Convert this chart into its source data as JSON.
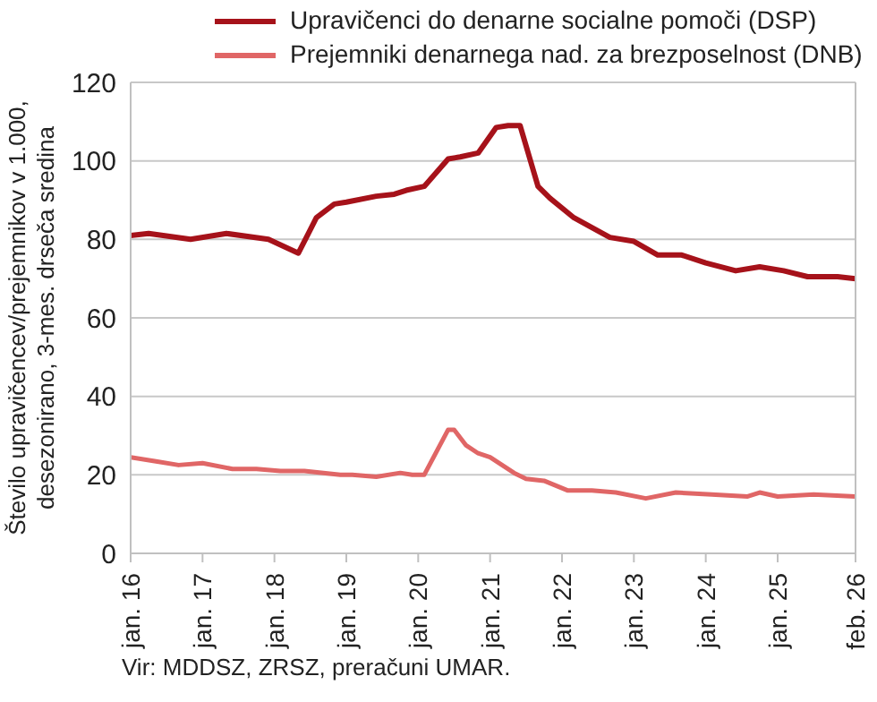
{
  "chart_data": {
    "type": "line",
    "ylabel": "Število upravičencev/prejemnikov v 1.000,\ndesezonirano, 3-mes. drseča sredina",
    "annotations": [
      "Vir: MDDSZ, ZRSZ, preračuni UMAR."
    ],
    "series": [
      {
        "name": "Upravičenci do denarne socialne pomoči (DSP)",
        "color": "#a6121a",
        "x": [
          "2016-01",
          "2016-04",
          "2016-11",
          "2017-05",
          "2017-12",
          "2018-05",
          "2018-08",
          "2018-11",
          "2019-01",
          "2019-06",
          "2019-09",
          "2019-11",
          "2020-02",
          "2020-06",
          "2020-08",
          "2020-11",
          "2021-02",
          "2021-04",
          "2021-06",
          "2021-09",
          "2021-11",
          "2022-03",
          "2022-09",
          "2023-01",
          "2023-05",
          "2023-09",
          "2024-01",
          "2024-06",
          "2024-10",
          "2025-02",
          "2025-06",
          "2025-11",
          "2026-02"
        ],
        "values": [
          81,
          81.5,
          80,
          81.5,
          80,
          76.5,
          85.5,
          89,
          89.5,
          91,
          91.5,
          92.5,
          93.5,
          100.5,
          101,
          102,
          108.5,
          109,
          109,
          93.5,
          90.5,
          85.5,
          80.5,
          79.5,
          76,
          76,
          74,
          72,
          73,
          72,
          70.5,
          70.5,
          70
        ]
      },
      {
        "name": "Prejemniki denarnega nad. za brezposelnost (DNB)",
        "color": "#e06666",
        "x": [
          "2016-01",
          "2016-05",
          "2016-09",
          "2017-01",
          "2017-06",
          "2017-10",
          "2018-02",
          "2018-06",
          "2018-12",
          "2019-02",
          "2019-06",
          "2019-10",
          "2019-12",
          "2020-02",
          "2020-06",
          "2020-07",
          "2020-09",
          "2020-11",
          "2021-01",
          "2021-05",
          "2021-07",
          "2021-10",
          "2022-02",
          "2022-06",
          "2022-10",
          "2023-03",
          "2023-08",
          "2024-02",
          "2024-08",
          "2024-10",
          "2025-01",
          "2025-07",
          "2026-02"
        ],
        "values": [
          24.5,
          23.5,
          22.5,
          23,
          21.5,
          21.5,
          21,
          21,
          20,
          20,
          19.5,
          20.5,
          20,
          20,
          31.5,
          31.5,
          27.5,
          25.5,
          24.5,
          20.5,
          19,
          18.5,
          16,
          16,
          15.5,
          14,
          15.5,
          15,
          14.5,
          15.5,
          14.5,
          15,
          14.5
        ]
      }
    ],
    "xlim": [
      "2016-01",
      "2026-02"
    ],
    "xticks": [
      {
        "value": "2016-01",
        "label": "jan. 16"
      },
      {
        "value": "2017-01",
        "label": "jan. 17"
      },
      {
        "value": "2018-01",
        "label": "jan. 18"
      },
      {
        "value": "2019-01",
        "label": "jan. 19"
      },
      {
        "value": "2020-01",
        "label": "jan. 20"
      },
      {
        "value": "2021-01",
        "label": "jan. 21"
      },
      {
        "value": "2022-01",
        "label": "jan. 22"
      },
      {
        "value": "2023-01",
        "label": "jan. 23"
      },
      {
        "value": "2024-01",
        "label": "jan. 24"
      },
      {
        "value": "2025-01",
        "label": "jan. 25"
      },
      {
        "value": "2026-02",
        "label": "feb. 26"
      }
    ],
    "ylim": [
      0,
      120
    ],
    "yticks": [
      0,
      20,
      40,
      60,
      80,
      100,
      120
    ],
    "grid": "y",
    "legend": "top",
    "marker": "none",
    "line_style": "solid"
  }
}
